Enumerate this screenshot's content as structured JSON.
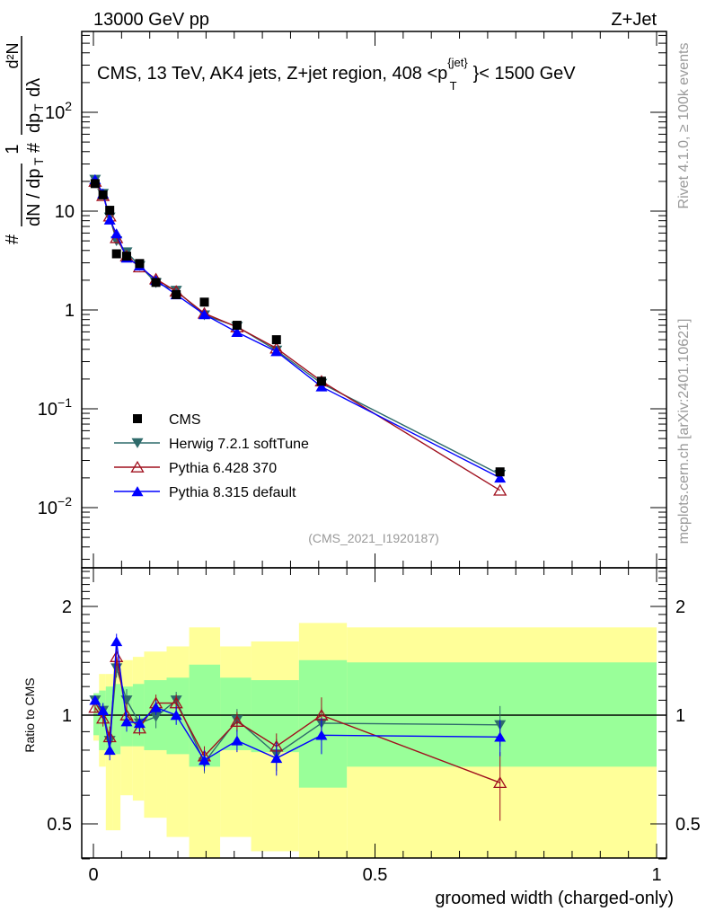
{
  "header": {
    "left": "13000 GeV pp",
    "right": "Z+Jet"
  },
  "side_text": {
    "rivet": "Rivet 4.1.0, ≥ 100k events",
    "mcplots": "mcplots.cern.ch [arXiv:2401.10621]"
  },
  "ylabel": {
    "hash1": "#",
    "one": "1",
    "dN": "dN / dp",
    "T1": "T",
    "hash2": "#",
    "d2N": "d²N",
    "dp": "dp",
    "T2": "T",
    "dl": "dλ",
    "hash3": "#"
  },
  "ratio_ylabel": "Ratio to CMS",
  "colors": {
    "cms": "#000000",
    "herwig": "#2f6b6b",
    "pythia6": "#a0101e",
    "pythia8": "#0000ff",
    "band_inner": "#99ff99",
    "band_outer": "#ffff99"
  },
  "chart_data": {
    "type": "scatter",
    "title": "CMS, 13 TeV, AK4 jets, Z+jet region, 408 <p_T^{jet}< 1500 GeV",
    "title_parts": {
      "main": "CMS, 13 TeV, AK4 jets, Z+jet region, 408 <p",
      "sup": "{jet}",
      "sub": "T",
      "end": "}< 1500 GeV"
    },
    "analysis_id": "(CMS_2021_I1920187)",
    "xlabel": "groomed width (charged-only)",
    "xlim": [
      0,
      1
    ],
    "ylim": [
      0.0025,
      660
    ],
    "yscale": "log",
    "ratio_ylim": [
      0.4,
      2.56
    ],
    "x_ticks": [
      "0",
      "0.5",
      "1"
    ],
    "x_tick_values": [
      0,
      0.5,
      1
    ],
    "y_ticks": [
      {
        "v": 0.01,
        "base": "10",
        "exp": "−2"
      },
      {
        "v": 0.1,
        "base": "10",
        "exp": "−1"
      },
      {
        "v": 1,
        "base": "1",
        "exp": ""
      },
      {
        "v": 10,
        "base": "10",
        "exp": ""
      },
      {
        "v": 100,
        "base": "10",
        "exp": "2"
      }
    ],
    "ratio_ticks": [
      {
        "v": 0.5,
        "label": "0.5"
      },
      {
        "v": 1,
        "label": "1"
      },
      {
        "v": 2,
        "label": "2"
      }
    ],
    "x": [
      0.003,
      0.017,
      0.029,
      0.041,
      0.059,
      0.082,
      0.111,
      0.147,
      0.197,
      0.255,
      0.325,
      0.405,
      0.722
    ],
    "bin_edges": [
      0,
      0.01,
      0.022,
      0.035,
      0.048,
      0.07,
      0.09,
      0.13,
      0.17,
      0.225,
      0.28,
      0.365,
      0.45,
      1.0
    ],
    "band_inner": [
      [
        0.88,
        1.15
      ],
      [
        0.8,
        1.17
      ],
      [
        0.78,
        1.2
      ],
      [
        0.78,
        1.22
      ],
      [
        0.82,
        1.2
      ],
      [
        0.82,
        1.22
      ],
      [
        0.8,
        1.25
      ],
      [
        0.78,
        1.27
      ],
      [
        0.72,
        1.38
      ],
      [
        0.8,
        1.27
      ],
      [
        0.79,
        1.25
      ],
      [
        0.63,
        1.42
      ],
      [
        0.72,
        1.4
      ]
    ],
    "band_outer": [
      [
        0.85,
        1.15
      ],
      [
        0.72,
        1.3
      ],
      [
        0.48,
        1.3
      ],
      [
        0.48,
        1.4
      ],
      [
        0.6,
        1.42
      ],
      [
        0.58,
        1.45
      ],
      [
        0.52,
        1.5
      ],
      [
        0.46,
        1.55
      ],
      [
        0.35,
        1.75
      ],
      [
        0.46,
        1.55
      ],
      [
        0.42,
        1.6
      ],
      [
        0.35,
        1.8
      ],
      [
        0.35,
        1.75
      ]
    ],
    "legend_position": "lower-left",
    "series": [
      {
        "name": "CMS",
        "key": "cms",
        "marker": "square",
        "values": [
          19,
          14.6,
          10.2,
          3.7,
          3.5,
          2.95,
          1.9,
          1.43,
          1.2,
          0.7,
          0.5,
          0.19,
          0.023
        ]
      },
      {
        "name": "Herwig 7.2.1 softTune",
        "key": "herwig",
        "marker": "triangle-down",
        "ratio": [
          1.1,
          1.03,
          0.85,
          1.35,
          1.1,
          0.95,
          0.99,
          1.1,
          0.74,
          0.97,
          0.78,
          0.95,
          0.94
        ],
        "ratio_err": [
          0.03,
          0.05,
          0.06,
          0.08,
          0.08,
          0.05,
          0.07,
          0.06,
          0.05,
          0.07,
          0.08,
          0.1,
          0.12
        ]
      },
      {
        "name": "Pythia 6.428 370",
        "key": "pythia6",
        "marker": "triangle-up-open",
        "ratio": [
          1.05,
          0.98,
          0.87,
          1.45,
          1.0,
          0.92,
          1.08,
          1.08,
          0.77,
          0.96,
          0.82,
          1.0,
          0.65
        ],
        "ratio_err": [
          0.03,
          0.05,
          0.06,
          0.08,
          0.08,
          0.04,
          0.06,
          0.06,
          0.05,
          0.06,
          0.07,
          0.12,
          0.14
        ]
      },
      {
        "name": "Pythia 8.315 default",
        "key": "pythia8",
        "marker": "triangle-up",
        "ratio": [
          1.1,
          1.03,
          0.8,
          1.6,
          0.96,
          0.95,
          1.05,
          1.0,
          0.75,
          0.85,
          0.76,
          0.88,
          0.87
        ],
        "ratio_err": [
          0.03,
          0.05,
          0.05,
          0.08,
          0.06,
          0.05,
          0.05,
          0.06,
          0.05,
          0.06,
          0.08,
          0.1,
          0.1
        ]
      }
    ]
  }
}
